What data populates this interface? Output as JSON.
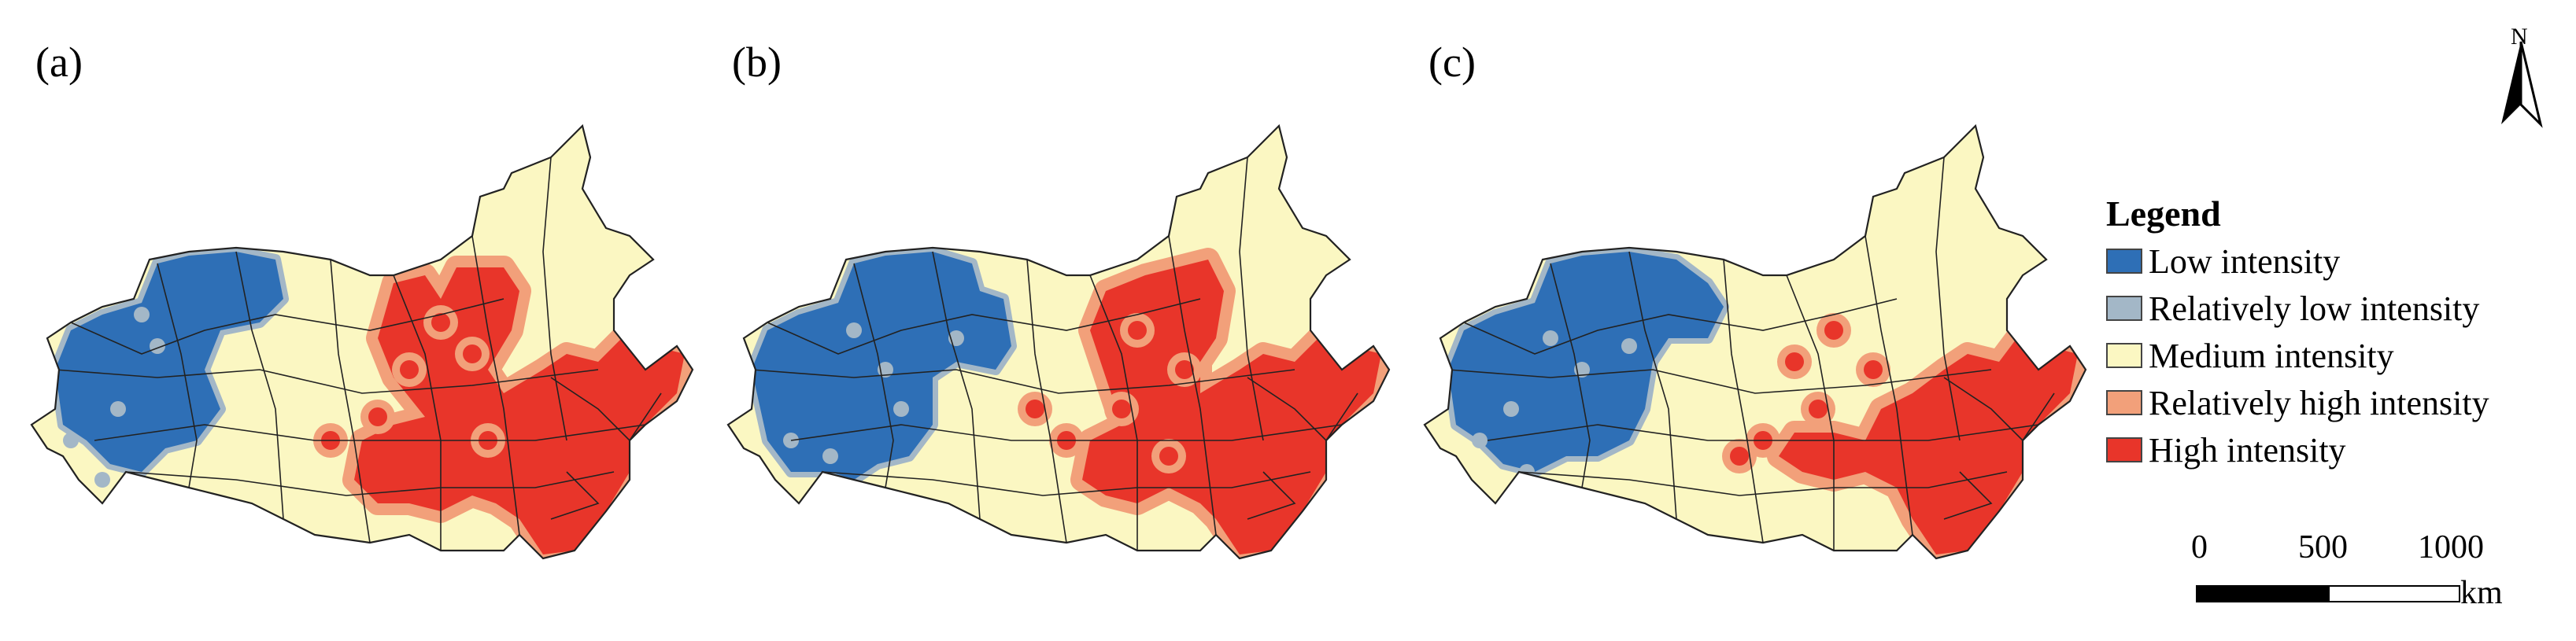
{
  "panels": [
    {
      "label": "(a)"
    },
    {
      "label": "(b)"
    },
    {
      "label": "(c)"
    }
  ],
  "north": {
    "label": "N"
  },
  "legend": {
    "title": "Legend",
    "items": [
      {
        "label": "Low intensity",
        "color": "#2e6fb6"
      },
      {
        "label": "Relatively low intensity",
        "color": "#a3b7c7"
      },
      {
        "label": "Medium intensity",
        "color": "#fbf7c2"
      },
      {
        "label": "Relatively high intensity",
        "color": "#f2a07a"
      },
      {
        "label": "High intensity",
        "color": "#e8352a"
      }
    ]
  },
  "scalebar": {
    "ticks": [
      "0",
      "500",
      "1000"
    ],
    "unit": "km"
  }
}
